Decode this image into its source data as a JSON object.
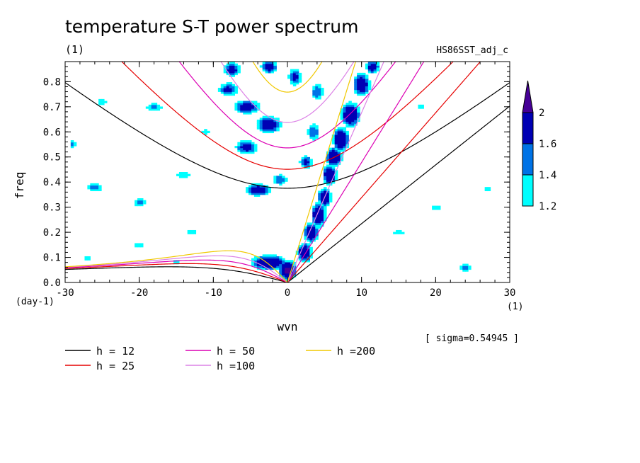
{
  "chart_data": {
    "type": "heatmap",
    "title": "temperature S-T power spectrum",
    "subtitle_left": "(1)",
    "subtitle_right": "HS86SST_adj_c",
    "xlabel": "wvn",
    "ylabel": "freq",
    "x_unit": "(1)",
    "y_unit": "(day-1)",
    "xlim": [
      -30,
      30
    ],
    "ylim": [
      0,
      0.88
    ],
    "x_ticks": [
      -30,
      -20,
      -10,
      0,
      10,
      20,
      30
    ],
    "x_tick_labels": [
      "-30",
      "-20",
      "-10",
      "0",
      "10",
      "20",
      "30"
    ],
    "y_ticks": [
      0,
      0.1,
      0.2,
      0.3,
      0.4,
      0.5,
      0.6,
      0.7,
      0.8
    ],
    "y_tick_labels": [
      "0.0",
      "0.1",
      "0.2",
      "0.3",
      "0.4",
      "0.5",
      "0.6",
      "0.7",
      "0.8"
    ],
    "annotation": "[ sigma=0.54945 ]",
    "colorbar": {
      "levels": [
        1.2,
        1.4,
        1.6,
        2
      ],
      "labels": [
        "1.2",
        "1.4",
        "1.6",
        "2"
      ],
      "colors": [
        "#00ffff",
        "#0073e6",
        "#0000b4",
        "#460096"
      ]
    },
    "series": [
      {
        "name": "h = 12",
        "h": 12,
        "color": "#000000"
      },
      {
        "name": "h = 25",
        "h": 25,
        "color": "#e60000"
      },
      {
        "name": "h = 50",
        "h": 50,
        "color": "#dc00b4"
      },
      {
        "name": "h =100",
        "h": 100,
        "color": "#dc82e6"
      },
      {
        "name": "h =200",
        "h": 200,
        "color": "#f0c800"
      }
    ],
    "blobs": [
      [
        -2.5,
        0.08,
        2.5,
        0.03,
        2.0
      ],
      [
        0,
        0.05,
        1.2,
        0.04,
        2.1
      ],
      [
        2.3,
        0.12,
        1.0,
        0.04,
        2.0
      ],
      [
        3.2,
        0.2,
        1.0,
        0.04,
        2.0
      ],
      [
        4.2,
        0.27,
        1.0,
        0.05,
        2.0
      ],
      [
        5,
        0.34,
        1.0,
        0.04,
        1.9
      ],
      [
        5.7,
        0.43,
        1.0,
        0.04,
        2.0
      ],
      [
        6.3,
        0.5,
        1.1,
        0.04,
        2.0
      ],
      [
        7.2,
        0.57,
        1.1,
        0.05,
        2.0
      ],
      [
        8.5,
        0.67,
        1.3,
        0.05,
        2.0
      ],
      [
        10,
        0.79,
        1.2,
        0.05,
        1.9
      ],
      [
        11.5,
        0.86,
        1.0,
        0.03,
        1.8
      ],
      [
        -4,
        0.37,
        1.8,
        0.025,
        1.9
      ],
      [
        -1,
        0.41,
        1.3,
        0.025,
        1.6
      ],
      [
        2.5,
        0.48,
        1.0,
        0.03,
        1.7
      ],
      [
        -5.5,
        0.54,
        1.6,
        0.03,
        1.8
      ],
      [
        -2.5,
        0.63,
        1.8,
        0.035,
        1.9
      ],
      [
        -5.5,
        0.7,
        2.0,
        0.03,
        1.8
      ],
      [
        -8,
        0.77,
        1.5,
        0.03,
        1.7
      ],
      [
        -7.5,
        0.85,
        1.2,
        0.03,
        1.8
      ],
      [
        -2.5,
        0.86,
        1.2,
        0.03,
        1.8
      ],
      [
        1,
        0.82,
        1.0,
        0.04,
        1.7
      ],
      [
        4,
        0.76,
        1.0,
        0.04,
        1.6
      ],
      [
        3.5,
        0.6,
        1.0,
        0.04,
        1.6
      ],
      [
        -18,
        0.7,
        1.5,
        0.02,
        1.5
      ],
      [
        -20,
        0.32,
        1.2,
        0.02,
        1.5
      ],
      [
        -26,
        0.38,
        1.3,
        0.02,
        1.6
      ],
      [
        -25,
        0.72,
        1.0,
        0.02,
        1.4
      ],
      [
        -29,
        0.55,
        0.6,
        0.02,
        1.5
      ],
      [
        -14,
        0.43,
        1.5,
        0.02,
        1.4
      ],
      [
        -20,
        0.15,
        1.5,
        0.02,
        1.3
      ],
      [
        -13,
        0.2,
        1.5,
        0.02,
        1.3
      ],
      [
        15,
        0.2,
        1.5,
        0.02,
        1.3
      ],
      [
        20,
        0.3,
        1.5,
        0.02,
        1.3
      ],
      [
        24,
        0.06,
        1.0,
        0.02,
        1.5
      ],
      [
        18,
        0.7,
        1.0,
        0.02,
        1.3
      ],
      [
        27,
        0.37,
        1.0,
        0.02,
        1.3
      ],
      [
        -27,
        0.1,
        1.2,
        0.02,
        1.3
      ],
      [
        -11,
        0.6,
        1.2,
        0.02,
        1.3
      ],
      [
        -15,
        0.08,
        1.2,
        0.02,
        1.3
      ]
    ]
  },
  "legend_items": [
    {
      "label": "h = 12",
      "color": "#000000"
    },
    {
      "label": "h = 25",
      "color": "#e60000"
    },
    {
      "label": "h = 50",
      "color": "#dc00b4"
    },
    {
      "label": "h =100",
      "color": "#dc82e6"
    },
    {
      "label": "h =200",
      "color": "#f0c800"
    }
  ]
}
